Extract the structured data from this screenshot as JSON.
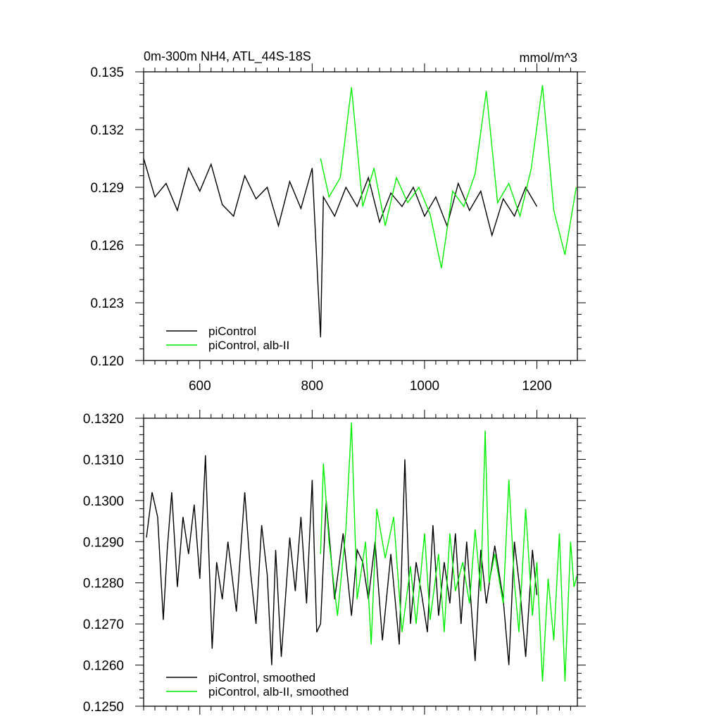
{
  "colors": {
    "series_black": "#000000",
    "series_green": "#00ee00",
    "axis": "#000000",
    "background": "#ffffff"
  },
  "chart_data": [
    {
      "type": "line",
      "title": "0m-300m NH4, ATL_44S-18S",
      "units": "mmol/m^3",
      "xlabel": "",
      "ylabel": "",
      "xlim": [
        500,
        1272
      ],
      "ylim": [
        0.12,
        0.135
      ],
      "xticks": [
        600,
        800,
        1000,
        1200
      ],
      "xtick_labels": [
        "600",
        "800",
        "1000",
        "1200"
      ],
      "yticks": [
        0.12,
        0.123,
        0.126,
        0.129,
        0.132,
        0.135
      ],
      "ytick_labels": [
        "0.120",
        "0.123",
        "0.126",
        "0.129",
        "0.132",
        "0.135"
      ],
      "grid": false,
      "legend": "bottom-left",
      "series": [
        {
          "name": "piControl",
          "color": "#000000",
          "x": [
            500,
            520,
            540,
            560,
            580,
            600,
            620,
            640,
            660,
            680,
            700,
            720,
            740,
            760,
            780,
            800,
            815,
            820,
            840,
            860,
            880,
            900,
            920,
            940,
            960,
            980,
            1000,
            1020,
            1040,
            1060,
            1080,
            1100,
            1120,
            1140,
            1160,
            1180,
            1200
          ],
          "y": [
            0.1305,
            0.1285,
            0.1292,
            0.1278,
            0.13,
            0.1288,
            0.1302,
            0.1281,
            0.1275,
            0.1296,
            0.1284,
            0.129,
            0.127,
            0.1293,
            0.1279,
            0.13,
            0.1212,
            0.1285,
            0.1275,
            0.129,
            0.128,
            0.1295,
            0.1272,
            0.1287,
            0.128,
            0.129,
            0.1275,
            0.1285,
            0.127,
            0.1292,
            0.1278,
            0.1288,
            0.1265,
            0.1284,
            0.1275,
            0.129,
            0.128
          ]
        },
        {
          "name": "piControl, alb-II",
          "color": "#00ee00",
          "x": [
            815,
            830,
            850,
            870,
            890,
            910,
            930,
            950,
            970,
            990,
            1010,
            1030,
            1050,
            1070,
            1090,
            1110,
            1130,
            1150,
            1170,
            1190,
            1210,
            1230,
            1250,
            1270
          ],
          "y": [
            0.1305,
            0.1285,
            0.1295,
            0.1342,
            0.128,
            0.13,
            0.127,
            0.1295,
            0.1282,
            0.129,
            0.1276,
            0.1248,
            0.1288,
            0.128,
            0.1297,
            0.134,
            0.1282,
            0.1292,
            0.1275,
            0.13,
            0.1343,
            0.1278,
            0.1255,
            0.129
          ]
        }
      ],
      "legend_entries": [
        "piControl",
        "piControl, alb-II"
      ]
    },
    {
      "type": "line",
      "title": "",
      "xlabel": "",
      "ylabel": "",
      "xlim": [
        500,
        1272
      ],
      "ylim": [
        0.125,
        0.132
      ],
      "xticks": [
        600,
        800,
        1000,
        1200
      ],
      "yticks": [
        0.125,
        0.126,
        0.127,
        0.128,
        0.129,
        0.13,
        0.131,
        0.132
      ],
      "ytick_labels": [
        "0.1250",
        "0.1260",
        "0.1270",
        "0.1280",
        "0.1290",
        "0.1300",
        "0.1310",
        "0.1320"
      ],
      "grid": false,
      "legend": "bottom-left",
      "series": [
        {
          "name": "piControl, smoothed",
          "color": "#000000",
          "x": [
            505,
            515,
            525,
            535,
            542,
            550,
            560,
            570,
            580,
            590,
            600,
            610,
            622,
            630,
            640,
            650,
            665,
            680,
            690,
            700,
            710,
            720,
            728,
            735,
            745,
            760,
            770,
            780,
            790,
            800,
            808,
            815,
            825,
            840,
            855,
            870,
            880,
            890,
            900,
            912,
            925,
            940,
            955,
            965,
            975,
            985,
            995,
            1005,
            1015,
            1025,
            1035,
            1045,
            1055,
            1065,
            1075,
            1090,
            1100,
            1110,
            1125,
            1140,
            1150,
            1160,
            1170,
            1180,
            1192,
            1200
          ],
          "y": [
            0.1291,
            0.1302,
            0.1296,
            0.1271,
            0.1288,
            0.1302,
            0.1279,
            0.1296,
            0.1287,
            0.1299,
            0.1281,
            0.1311,
            0.1264,
            0.1285,
            0.1276,
            0.129,
            0.1273,
            0.1302,
            0.1283,
            0.127,
            0.1294,
            0.1282,
            0.126,
            0.1288,
            0.1262,
            0.1291,
            0.1278,
            0.1296,
            0.1275,
            0.1305,
            0.1268,
            0.127,
            0.13,
            0.1276,
            0.1292,
            0.1272,
            0.1288,
            0.1285,
            0.1276,
            0.129,
            0.1266,
            0.1287,
            0.1265,
            0.131,
            0.127,
            0.1285,
            0.1277,
            0.1268,
            0.1294,
            0.1272,
            0.1285,
            0.1275,
            0.1292,
            0.127,
            0.129,
            0.1261,
            0.1288,
            0.1275,
            0.1289,
            0.1276,
            0.126,
            0.129,
            0.1278,
            0.1262,
            0.1288,
            0.1277
          ]
        },
        {
          "name": "piControl, alb-II, smoothed",
          "color": "#00ee00",
          "x": [
            815,
            820,
            830,
            845,
            860,
            870,
            880,
            895,
            905,
            915,
            930,
            945,
            960,
            975,
            985,
            1000,
            1010,
            1025,
            1035,
            1045,
            1055,
            1068,
            1080,
            1090,
            1100,
            1108,
            1115,
            1125,
            1140,
            1150,
            1160,
            1168,
            1180,
            1192,
            1200,
            1210,
            1220,
            1230,
            1240,
            1250,
            1260,
            1266,
            1272
          ],
          "y": [
            0.1287,
            0.1309,
            0.129,
            0.1272,
            0.1293,
            0.1319,
            0.1276,
            0.129,
            0.1265,
            0.1298,
            0.1286,
            0.1296,
            0.1268,
            0.1284,
            0.127,
            0.1292,
            0.1271,
            0.1287,
            0.1268,
            0.1292,
            0.1278,
            0.1285,
            0.1275,
            0.1293,
            0.1278,
            0.1317,
            0.128,
            0.1287,
            0.1275,
            0.1305,
            0.128,
            0.1268,
            0.1298,
            0.1272,
            0.1285,
            0.1256,
            0.1281,
            0.1266,
            0.1292,
            0.1256,
            0.129,
            0.1279,
            0.1282
          ]
        }
      ],
      "legend_entries": [
        "piControl, smoothed",
        "piControl, alb-II, smoothed"
      ]
    }
  ]
}
